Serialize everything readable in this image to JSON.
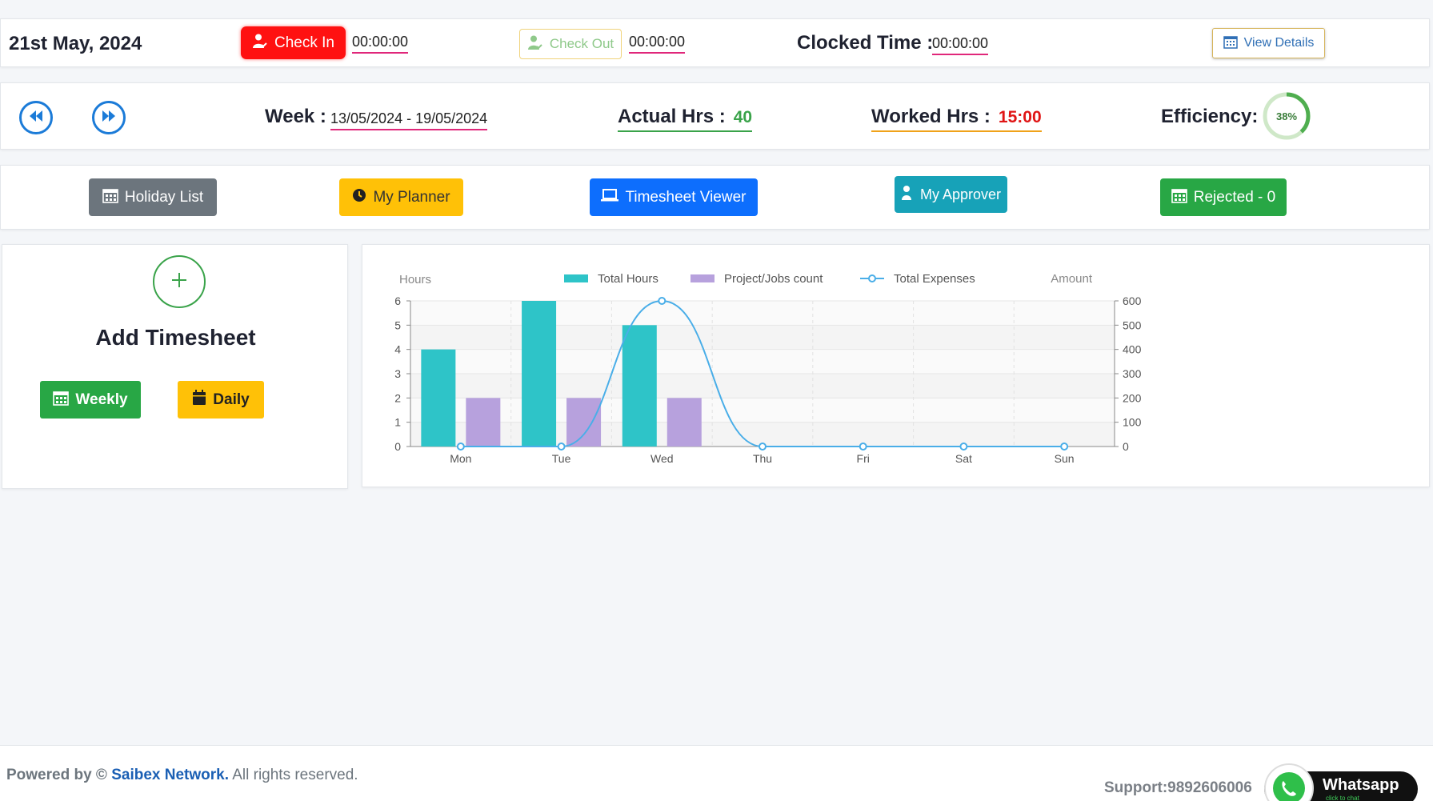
{
  "header": {
    "date": "21st May, 2024",
    "check_in_label": "Check In",
    "check_in_time": "00:00:00",
    "check_out_label": "Check Out",
    "check_out_time": "00:00:00",
    "clocked_label": "Clocked Time :",
    "clocked_time": "00:00:00",
    "view_details_label": "View Details"
  },
  "week_bar": {
    "week_label": "Week :",
    "week_value": "13/05/2024 - 19/05/2024",
    "actual_label": "Actual Hrs :",
    "actual_value": "40",
    "worked_label": "Worked Hrs :",
    "worked_value": "15:00",
    "efficiency_label": "Efficiency:",
    "efficiency_text": "38%",
    "efficiency_fraction": 0.38
  },
  "actions": {
    "holiday": "Holiday List",
    "planner": "My Planner",
    "viewer": "Timesheet Viewer",
    "approver": "My Approver",
    "rejected": "Rejected - 0"
  },
  "add_card": {
    "title": "Add Timesheet",
    "weekly": "Weekly",
    "daily": "Daily"
  },
  "chart_data": {
    "type": "bar",
    "categories": [
      "Mon",
      "Tue",
      "Wed",
      "Thu",
      "Fri",
      "Sat",
      "Sun"
    ],
    "ylabel": "Hours",
    "y2label": "Amount",
    "ylim": [
      0,
      6
    ],
    "y2lim": [
      0,
      600
    ],
    "yticks": [
      0,
      1,
      2,
      3,
      4,
      5,
      6
    ],
    "y2ticks": [
      0,
      100,
      200,
      300,
      400,
      500,
      600
    ],
    "legend_position": "top",
    "series": [
      {
        "name": "Total Hours",
        "type": "bar",
        "axis": "left",
        "color": "#2ec4c8",
        "values": [
          4,
          6,
          5,
          0,
          0,
          0,
          0
        ]
      },
      {
        "name": "Project/Jobs count",
        "type": "bar",
        "axis": "left",
        "color": "#b7a1dd",
        "values": [
          2,
          2,
          2,
          0,
          0,
          0,
          0
        ]
      },
      {
        "name": "Total Expenses",
        "type": "line",
        "axis": "right",
        "color": "#4aaee8",
        "values": [
          0,
          0,
          600,
          0,
          0,
          0,
          0
        ]
      }
    ]
  },
  "footer": {
    "powered_prefix": "Powered by ©",
    "brand": "Saibex Network.",
    "rights": "All rights reserved.",
    "support": "Support:9892606006",
    "whatsapp": "Whatsapp",
    "whatsapp_sub": "click to chat"
  },
  "colors": {
    "accent_red": "#ff1111",
    "accent_green": "#28a745",
    "accent_yellow": "#ffc107",
    "accent_blue": "#0d6efd",
    "accent_teal": "#17a2b8",
    "underline_pink": "#e0277a"
  }
}
